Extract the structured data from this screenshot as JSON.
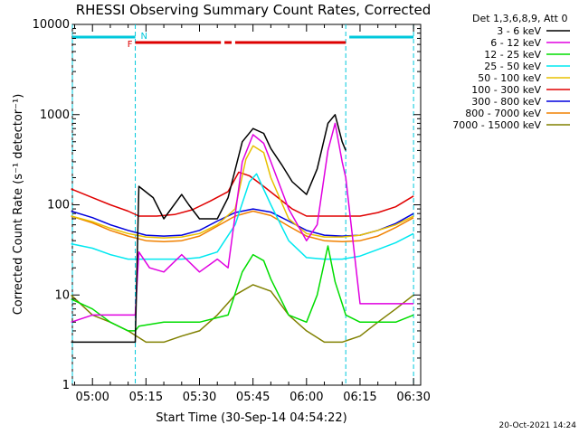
{
  "chart_data": {
    "type": "line",
    "title": "RHESSI Observing Summary Count Rates, Corrected",
    "xlabel": "Start Time (30-Sep-14 04:54:22)",
    "ylabel": "Corrected Count Rate (s⁻¹ detector⁻¹)",
    "yscale": "log",
    "ylim": [
      1,
      10000
    ],
    "xlim": [
      "04:54:22",
      "06:32"
    ],
    "x_ticks": [
      "05:00",
      "05:15",
      "05:30",
      "05:45",
      "06:00",
      "06:15",
      "06:30"
    ],
    "y_ticks": [
      "1",
      "10",
      "100",
      "1000",
      "10000"
    ],
    "legend_title": "Det 1,3,6,8,9, Att 0",
    "legend_position": "right",
    "timestamp": "20-Oct-2021 14:24",
    "flag_labels": [
      "F",
      "N"
    ],
    "flag_colors": {
      "F": "#dd0000",
      "N": "#00c8dc"
    },
    "flags": {
      "night_bars": [
        [
          "04:54",
          "05:12"
        ],
        [
          "06:12",
          "06:30"
        ]
      ],
      "flare_bars": [
        [
          "05:12",
          "05:36"
        ],
        [
          "05:37",
          "05:39"
        ],
        [
          "05:40",
          "06:11"
        ]
      ],
      "night_boundaries": [
        "04:54",
        "05:12",
        "06:11",
        "06:30"
      ]
    },
    "series": [
      {
        "name": "3 - 6 keV",
        "color": "#000000",
        "x": [
          "04:54",
          "05:00",
          "05:05",
          "05:10",
          "05:12",
          "05:13",
          "05:17",
          "05:20",
          "05:25",
          "05:27",
          "05:30",
          "05:35",
          "05:38",
          "05:42",
          "05:45",
          "05:48",
          "05:50",
          "05:53",
          "05:56",
          "06:00",
          "06:03",
          "06:06",
          "06:08",
          "06:10",
          "06:11"
        ],
        "y": [
          3,
          3,
          3,
          3,
          3,
          160,
          120,
          70,
          130,
          100,
          70,
          70,
          120,
          500,
          700,
          620,
          420,
          280,
          180,
          130,
          250,
          800,
          1000,
          500,
          400
        ]
      },
      {
        "name": "6 - 12 keV",
        "color": "#e000e0",
        "x": [
          "04:54",
          "05:00",
          "05:05",
          "05:10",
          "05:12",
          "05:13",
          "05:16",
          "05:20",
          "05:25",
          "05:30",
          "05:35",
          "05:38",
          "05:42",
          "05:45",
          "05:48",
          "05:50",
          "05:55",
          "06:00",
          "06:03",
          "06:06",
          "06:08",
          "06:10",
          "06:11",
          "06:15",
          "06:20",
          "06:25",
          "06:30"
        ],
        "y": [
          5,
          6,
          6,
          6,
          6,
          30,
          20,
          18,
          28,
          18,
          25,
          20,
          300,
          600,
          480,
          300,
          90,
          40,
          60,
          400,
          800,
          300,
          200,
          8,
          8,
          8,
          8
        ]
      },
      {
        "name": "12 - 25 keV",
        "color": "#00dd00",
        "x": [
          "04:54",
          "05:00",
          "05:05",
          "05:10",
          "05:12",
          "05:13",
          "05:20",
          "05:30",
          "05:38",
          "05:42",
          "05:45",
          "05:48",
          "05:50",
          "05:55",
          "06:00",
          "06:03",
          "06:06",
          "06:08",
          "06:10",
          "06:11",
          "06:15",
          "06:20",
          "06:25",
          "06:30"
        ],
        "y": [
          9,
          7,
          5,
          4,
          4,
          4.5,
          5,
          5,
          6,
          18,
          28,
          24,
          15,
          6,
          5,
          10,
          35,
          14,
          8,
          6,
          5,
          5,
          5,
          6
        ]
      },
      {
        "name": "25 - 50 keV",
        "color": "#00e8f0",
        "x": [
          "04:54",
          "05:00",
          "05:05",
          "05:10",
          "05:15",
          "05:20",
          "05:25",
          "05:30",
          "05:35",
          "05:40",
          "05:44",
          "05:46",
          "05:50",
          "05:55",
          "06:00",
          "06:05",
          "06:10",
          "06:15",
          "06:20",
          "06:25",
          "06:30"
        ],
        "y": [
          37,
          33,
          28,
          25,
          25,
          25,
          25,
          26,
          30,
          60,
          180,
          220,
          100,
          40,
          26,
          25,
          25,
          27,
          32,
          38,
          48
        ]
      },
      {
        "name": "50 - 100 keV",
        "color": "#e8c000",
        "x": [
          "04:54",
          "05:00",
          "05:05",
          "05:10",
          "05:15",
          "05:20",
          "05:25",
          "05:30",
          "05:35",
          "05:40",
          "05:43",
          "05:45",
          "05:48",
          "05:50",
          "05:55",
          "06:00",
          "06:05",
          "06:10",
          "06:15",
          "06:20",
          "06:25",
          "06:30"
        ],
        "y": [
          75,
          65,
          55,
          48,
          44,
          43,
          44,
          48,
          60,
          90,
          320,
          450,
          380,
          200,
          70,
          48,
          44,
          44,
          46,
          52,
          60,
          75
        ]
      },
      {
        "name": "100 - 300 keV",
        "color": "#e00000",
        "x": [
          "04:54",
          "05:00",
          "05:05",
          "05:10",
          "05:13",
          "05:18",
          "05:23",
          "05:28",
          "05:33",
          "05:38",
          "05:41",
          "05:44",
          "05:48",
          "05:52",
          "05:56",
          "06:00",
          "06:05",
          "06:10",
          "06:15",
          "06:20",
          "06:25",
          "06:30"
        ],
        "y": [
          150,
          120,
          100,
          85,
          75,
          75,
          78,
          88,
          110,
          140,
          230,
          210,
          160,
          120,
          90,
          75,
          75,
          75,
          75,
          82,
          95,
          125
        ]
      },
      {
        "name": "300 - 800 keV",
        "color": "#0000dd",
        "x": [
          "04:54",
          "05:00",
          "05:05",
          "05:10",
          "05:15",
          "05:20",
          "05:25",
          "05:30",
          "05:35",
          "05:40",
          "05:45",
          "05:50",
          "05:55",
          "06:00",
          "06:05",
          "06:10",
          "06:15",
          "06:20",
          "06:25",
          "06:30"
        ],
        "y": [
          85,
          72,
          60,
          52,
          46,
          45,
          46,
          52,
          66,
          82,
          90,
          83,
          66,
          52,
          46,
          45,
          46,
          52,
          62,
          80
        ]
      },
      {
        "name": "800 - 7000 keV",
        "color": "#f08000",
        "x": [
          "04:54",
          "05:00",
          "05:05",
          "05:10",
          "05:15",
          "05:20",
          "05:25",
          "05:30",
          "05:35",
          "05:40",
          "05:45",
          "05:50",
          "05:55",
          "06:00",
          "06:05",
          "06:10",
          "06:15",
          "06:20",
          "06:25",
          "06:30"
        ],
        "y": [
          75,
          63,
          52,
          45,
          40,
          39,
          40,
          45,
          58,
          75,
          85,
          76,
          58,
          45,
          40,
          39,
          40,
          45,
          56,
          72
        ]
      },
      {
        "name": "7000 - 15000 keV",
        "color": "#808000",
        "x": [
          "04:54",
          "05:00",
          "05:05",
          "05:10",
          "05:15",
          "05:20",
          "05:25",
          "05:30",
          "05:35",
          "05:40",
          "05:45",
          "05:50",
          "05:55",
          "06:00",
          "06:05",
          "06:10",
          "06:15",
          "06:20",
          "06:25",
          "06:30"
        ],
        "y": [
          10,
          6,
          5,
          4,
          3,
          3,
          3.5,
          4,
          6,
          10,
          13,
          11,
          6,
          4,
          3,
          3,
          3.5,
          5,
          7,
          10
        ]
      }
    ]
  }
}
